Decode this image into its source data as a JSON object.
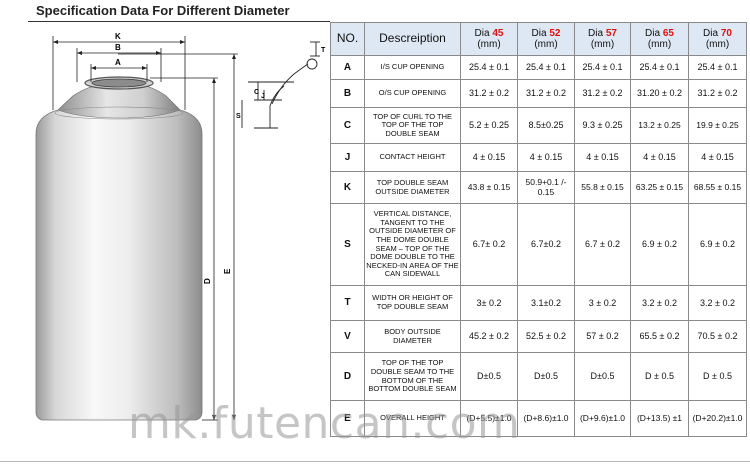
{
  "title": "Specification Data For Different Diameter",
  "drawing": {
    "labels": {
      "K": "K",
      "B": "B",
      "A": "A",
      "E": "E",
      "D": "D",
      "T": "T",
      "C": "C",
      "J": "J",
      "S": "S"
    }
  },
  "table": {
    "header": {
      "no": "NO.",
      "description": "Descreiption",
      "diameters": [
        {
          "prefix": "Dia ",
          "number": "45",
          "unit": "(mm)"
        },
        {
          "prefix": "Dia ",
          "number": "52",
          "unit": "(mm)"
        },
        {
          "prefix": "Dia ",
          "number": "57",
          "unit": "(mm)"
        },
        {
          "prefix": "Dia ",
          "number": "65",
          "unit": "(mm)"
        },
        {
          "prefix": "Dia ",
          "number": "70",
          "unit": "(mm)"
        }
      ]
    },
    "rows": [
      {
        "no": "A",
        "desc": "I/S CUP OPENING",
        "values": [
          "25.4 ± 0.1",
          "25.4 ± 0.1",
          "25.4 ± 0.1",
          "25.4 ± 0.1",
          "25.4 ± 0.1"
        ]
      },
      {
        "no": "B",
        "desc": "O/S CUP OPENING",
        "values": [
          "31.2 ± 0.2",
          "31.2 ± 0.2",
          "31.2 ± 0.2",
          "31.20 ± 0.2",
          "31.2 ± 0.2"
        ]
      },
      {
        "no": "C",
        "desc": "TOP OF CURL TO THE TOP OF THE TOP DOUBLE SEAM",
        "values": [
          "5.2 ± 0.25",
          "8.5±0.25",
          "9.3 ± 0.25",
          "13.2 ± 0.25",
          "19.9 ± 0.25"
        ]
      },
      {
        "no": "J",
        "desc": "CONTACT HEIGHT",
        "values": [
          "4 ± 0.15",
          "4 ± 0.15",
          "4 ± 0.15",
          "4 ± 0.15",
          "4 ± 0.15"
        ]
      },
      {
        "no": "K",
        "desc": "TOP DOUBLE SEAM OUTSIDE DIAMETER",
        "values": [
          "43.8 ± 0.15",
          "50.9+0.1 /- 0.15",
          "55.8 ± 0.15",
          "63.25 ± 0.15",
          "68.55 ± 0.15"
        ]
      },
      {
        "no": "S",
        "desc": "VERTICAL DISTANCE, TANGENT TO THE OUTSIDE DIAMETER OF THE DOME DOUBLE SEAM – TOP OF THE DOME DOUBLE TO THE NECKED-IN AREA OF THE CAN SIDEWALL",
        "values": [
          "6.7± 0.2",
          "6.7±0.2",
          "6.7 ± 0.2",
          "6.9 ± 0.2",
          "6.9 ± 0.2"
        ]
      },
      {
        "no": "T",
        "desc": "WIDTH OR HEIGHT OF TOP DOUBLE SEAM",
        "values": [
          "3± 0.2",
          "3.1±0.2",
          "3 ± 0.2",
          "3.2 ± 0.2",
          "3.2 ± 0.2"
        ]
      },
      {
        "no": "V",
        "desc": "BODY OUTSIDE DIAMETER",
        "values": [
          "45.2 ± 0.2",
          "52.5 ± 0.2",
          "57 ± 0.2",
          "65.5 ± 0.2",
          "70.5 ± 0.2"
        ]
      },
      {
        "no": "D",
        "desc": "TOP OF THE TOP DOUBLE SEAM TO THE BOTTOM OF THE BOTTOM DOUBLE SEAM",
        "values": [
          "D±0.5",
          "D±0.5",
          "D±0.5",
          "D ± 0.5",
          "D ± 0.5"
        ]
      },
      {
        "no": "E",
        "desc": "OVERALL HEIGHT",
        "values": [
          "(D+5.5)±1.0",
          "(D+8.6)±1.0",
          "(D+9.6)±1.0",
          "(D+13.5) ±1",
          "(D+20.2)±1.0"
        ]
      }
    ]
  },
  "watermark": "mk.futencan.com"
}
